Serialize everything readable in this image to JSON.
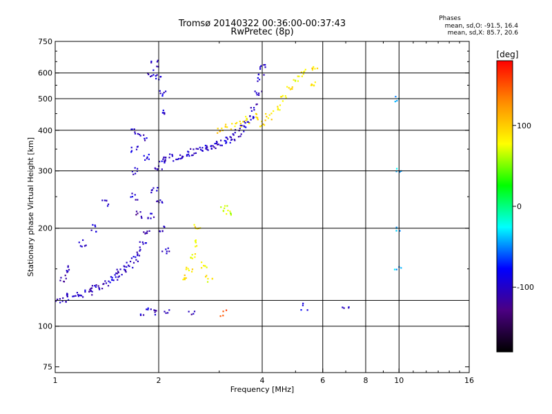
{
  "header": {
    "title_line1": "Tromsø 20140322 00:36:00-00:37:43",
    "title_line2": "RwPretec (8p)"
  },
  "stats": {
    "title": "Phases",
    "o_mode": "mean, sd,O: -91.5, 16.4",
    "x_mode": "mean, sd,X:  85.7, 20.6"
  },
  "colorbar": {
    "label": "[deg]",
    "ticks": [
      "100",
      "0",
      "-100"
    ],
    "tick_values": [
      100,
      0,
      -100
    ],
    "range": [
      -180,
      180
    ],
    "colors": [
      "#000000",
      "#4b0082",
      "#0000ff",
      "#00ffff",
      "#00ff00",
      "#ffff00",
      "#ff8c00",
      "#ff0000"
    ]
  },
  "chart_data": {
    "type": "scatter",
    "title": "Tromsø 20140322 00:36:00-00:37:43",
    "subtitle": "RwPretec (8p)",
    "xlabel": "Frequency [MHz]",
    "ylabel": "Stationary phase Virtual Height [km]",
    "x_scale": "log",
    "y_scale": "log",
    "xlim": [
      1,
      16
    ],
    "ylim": [
      72,
      750
    ],
    "xticks": [
      1,
      2,
      4,
      6,
      8,
      10,
      16
    ],
    "xtick_labels": [
      "1",
      "2",
      "4",
      "6",
      "8",
      "10",
      "16"
    ],
    "xgrid": [
      2,
      4,
      6,
      8,
      10
    ],
    "yticks": [
      75,
      100,
      200,
      300,
      400,
      500,
      600,
      750
    ],
    "ytick_labels": [
      "75",
      "100",
      "200",
      "300",
      "400",
      "500",
      "600",
      "750"
    ],
    "ygrid": [
      100,
      120,
      200,
      300,
      400,
      500,
      600
    ],
    "color_variable": "phase [deg]",
    "color_range": [
      -180,
      180
    ],
    "traces": [
      {
        "mode": "O",
        "points": [
          [
            1.0,
            120,
            -100
          ],
          [
            1.05,
            121,
            -105
          ],
          [
            1.1,
            123,
            -100
          ],
          [
            1.15,
            124,
            -95
          ],
          [
            1.2,
            126,
            -100
          ],
          [
            1.25,
            128,
            -110
          ],
          [
            1.3,
            131,
            -100
          ],
          [
            1.35,
            133,
            -105
          ],
          [
            1.4,
            136,
            -100
          ],
          [
            1.45,
            139,
            -95
          ],
          [
            1.5,
            142,
            -100
          ],
          [
            1.55,
            146,
            -105
          ],
          [
            1.6,
            150,
            -100
          ],
          [
            1.65,
            155,
            -95
          ],
          [
            1.7,
            160,
            -100
          ],
          [
            1.75,
            168,
            -105
          ],
          [
            1.8,
            178,
            -100
          ],
          [
            1.85,
            195,
            -110
          ],
          [
            1.9,
            220,
            -100
          ],
          [
            1.95,
            260,
            -105
          ],
          [
            2.0,
            310,
            -100
          ],
          [
            2.05,
            322,
            -95
          ],
          [
            2.1,
            326,
            -100
          ],
          [
            2.2,
            330,
            -105
          ],
          [
            2.3,
            334,
            -100
          ],
          [
            2.4,
            338,
            -95
          ],
          [
            2.5,
            342,
            -100
          ],
          [
            2.6,
            346,
            -105
          ],
          [
            2.7,
            350,
            -100
          ],
          [
            2.8,
            354,
            -95
          ],
          [
            2.9,
            358,
            -100
          ],
          [
            3.0,
            362,
            -105
          ],
          [
            3.1,
            367,
            -100
          ],
          [
            3.2,
            374,
            -95
          ],
          [
            3.3,
            382,
            -100
          ],
          [
            3.4,
            392,
            -105
          ],
          [
            3.5,
            405,
            -100
          ],
          [
            3.6,
            420,
            -95
          ],
          [
            3.7,
            440,
            -100
          ],
          [
            3.8,
            470,
            -105
          ],
          [
            3.9,
            520,
            -100
          ],
          [
            3.95,
            580,
            -95
          ],
          [
            4.0,
            630,
            -100
          ]
        ]
      },
      {
        "mode": "O-spread",
        "points": [
          [
            1.7,
            400,
            -100
          ],
          [
            1.7,
            350,
            -95
          ],
          [
            1.7,
            300,
            -105
          ],
          [
            1.7,
            250,
            -100
          ],
          [
            1.75,
            220,
            -110
          ],
          [
            1.8,
            380,
            -100
          ],
          [
            1.85,
            330,
            -95
          ],
          [
            1.9,
            600,
            -100
          ],
          [
            1.95,
            640,
            -105
          ],
          [
            2.0,
            580,
            -100
          ],
          [
            2.05,
            520,
            -95
          ],
          [
            2.1,
            460,
            -100
          ],
          [
            2.0,
            240,
            -110
          ],
          [
            2.05,
            200,
            -100
          ],
          [
            2.1,
            170,
            -105
          ],
          [
            1.4,
            240,
            -100
          ],
          [
            1.3,
            200,
            -95
          ],
          [
            1.2,
            180,
            -105
          ],
          [
            1.1,
            150,
            -100
          ],
          [
            1.05,
            140,
            -110
          ]
        ]
      },
      {
        "mode": "sporadic",
        "points": [
          [
            1.8,
            110,
            -100
          ],
          [
            1.9,
            111,
            -95
          ],
          [
            2.0,
            110,
            -105
          ],
          [
            2.1,
            111,
            -100
          ],
          [
            2.5,
            110,
            -110
          ],
          [
            3.1,
            110,
            150
          ],
          [
            5.3,
            115,
            -90
          ],
          [
            7.0,
            115,
            -100
          ],
          [
            9.9,
            500,
            -40
          ],
          [
            9.9,
            300,
            -40
          ],
          [
            9.9,
            200,
            -40
          ],
          [
            9.9,
            150,
            -40
          ]
        ]
      },
      {
        "mode": "X",
        "points": [
          [
            2.4,
            140,
            90
          ],
          [
            2.45,
            150,
            85
          ],
          [
            2.5,
            165,
            80
          ],
          [
            2.55,
            180,
            85
          ],
          [
            2.6,
            200,
            90
          ],
          [
            2.7,
            155,
            85
          ],
          [
            2.8,
            140,
            80
          ],
          [
            3.1,
            230,
            60
          ],
          [
            3.2,
            225,
            65
          ],
          [
            3.0,
            400,
            100
          ],
          [
            3.2,
            410,
            95
          ],
          [
            3.4,
            420,
            90
          ],
          [
            3.6,
            430,
            85
          ],
          [
            3.8,
            440,
            90
          ],
          [
            4.0,
            420,
            95
          ],
          [
            4.2,
            440,
            90
          ],
          [
            4.4,
            470,
            85
          ],
          [
            4.6,
            500,
            90
          ],
          [
            4.8,
            540,
            85
          ],
          [
            5.0,
            580,
            80
          ],
          [
            5.3,
            600,
            85
          ],
          [
            5.6,
            560,
            90
          ],
          [
            5.7,
            620,
            95
          ]
        ]
      }
    ]
  }
}
